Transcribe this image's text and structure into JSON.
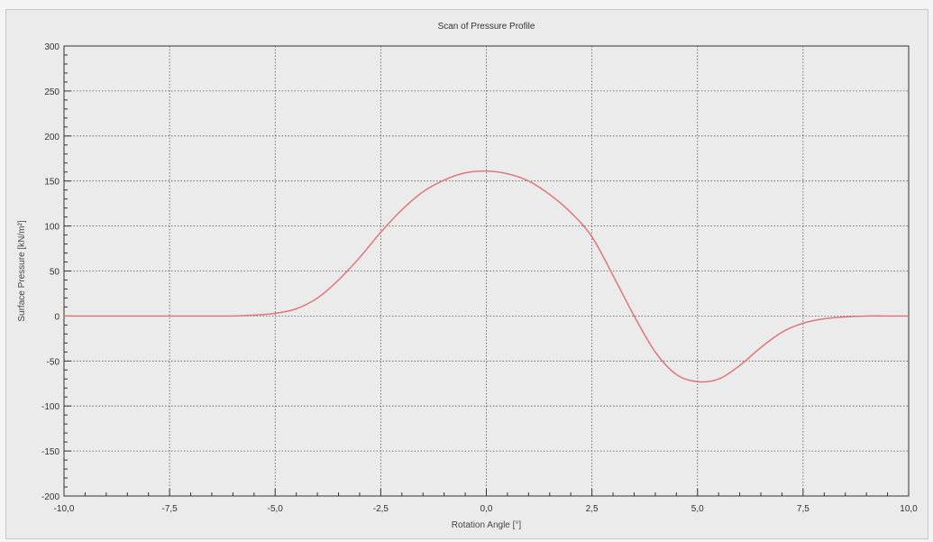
{
  "chart_data": {
    "type": "line",
    "title": "Scan of Pressure Profile",
    "xlabel": "Rotation Angle [°]",
    "ylabel": "Surface Pressure [kN/m²]",
    "xlim": [
      -10,
      10
    ],
    "ylim": [
      -200,
      300
    ],
    "x_ticks": [
      -10,
      -7.5,
      -5,
      -2.5,
      0,
      2.5,
      5,
      7.5,
      10
    ],
    "x_tick_labels": [
      "-10,0",
      "-7,5",
      "-5,0",
      "-2,5",
      "0,0",
      "2,5",
      "5,0",
      "7,5",
      "10,0"
    ],
    "y_ticks": [
      300,
      250,
      200,
      150,
      100,
      50,
      0,
      -50,
      -100,
      -150,
      -200
    ],
    "y_tick_labels": [
      "300",
      "250",
      "200",
      "150",
      "100",
      "50",
      "0",
      "-50",
      "-100",
      "-150",
      "-200"
    ],
    "grid": true,
    "line_color": "#e07070",
    "series": [
      {
        "x": [
          -10,
          -9,
          -8,
          -7,
          -6,
          -5.5,
          -5,
          -4.5,
          -4,
          -3.5,
          -3,
          -2.5,
          -2,
          -1.5,
          -1,
          -0.5,
          0,
          0.5,
          1,
          1.5,
          2,
          2.5,
          3,
          3.5,
          4,
          4.5,
          5,
          5.5,
          6,
          6.5,
          7,
          7.5,
          8,
          8.5,
          9,
          9.5,
          10
        ],
        "y": [
          0,
          0,
          0,
          0,
          0,
          1,
          3,
          8,
          20,
          40,
          65,
          93,
          118,
          138,
          151,
          159,
          161,
          158,
          150,
          135,
          115,
          88,
          45,
          0,
          -40,
          -65,
          -73,
          -70,
          -55,
          -35,
          -18,
          -8,
          -3,
          -1,
          0,
          0,
          0
        ]
      }
    ]
  }
}
